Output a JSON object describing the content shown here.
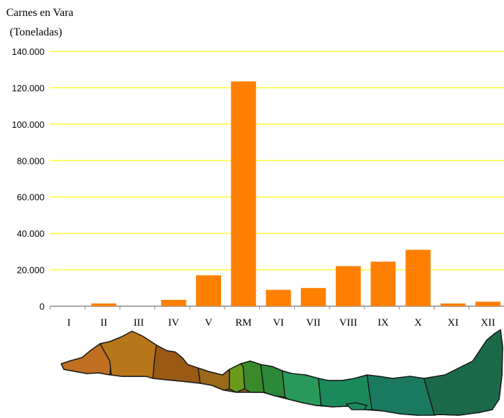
{
  "chart_data": {
    "type": "bar",
    "title_line1": "Carnes en Vara",
    "title_line2": "(Toneladas)",
    "categories": [
      "I",
      "II",
      "III",
      "IV",
      "V",
      "RM",
      "VI",
      "VII",
      "VIII",
      "IX",
      "X",
      "XI",
      "XII"
    ],
    "values": [
      0,
      1500,
      0,
      3500,
      17000,
      123500,
      9000,
      10000,
      22000,
      24500,
      31000,
      1500,
      2500
    ],
    "ylim": [
      0,
      140000
    ],
    "yticks": [
      0,
      20000,
      40000,
      60000,
      80000,
      100000,
      120000,
      140000
    ],
    "ytick_labels": [
      "0",
      "20.000",
      "40.000",
      "60.000",
      "80.000",
      "100.000",
      "120.000",
      "140.000"
    ],
    "grid": true,
    "colors": {
      "bar": "#ff8000",
      "grid": "#ffff33",
      "axis": "#888888"
    }
  }
}
